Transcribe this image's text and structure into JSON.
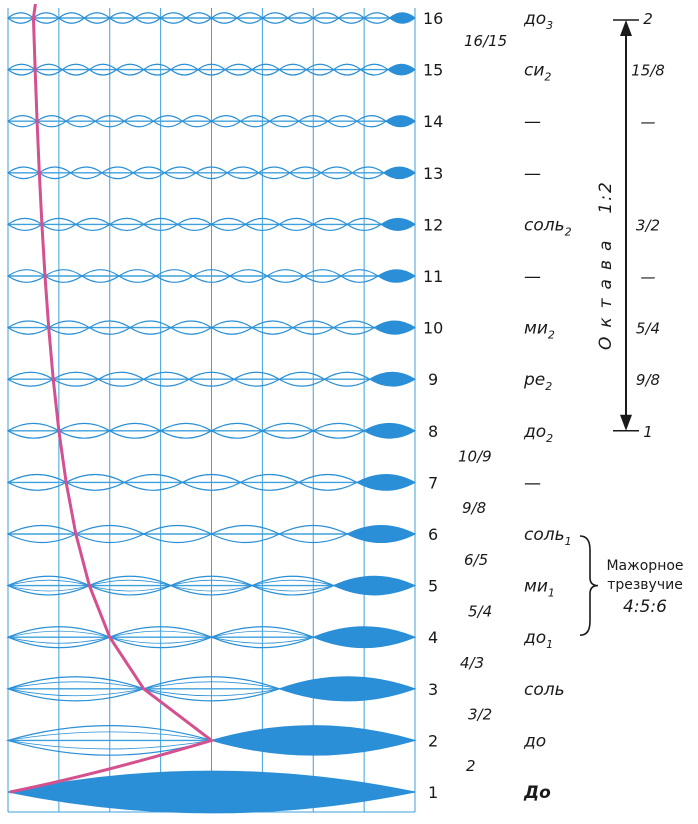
{
  "colors": {
    "wave": "#2a8fd6",
    "grid": "#3ea0dc",
    "curve": "#d4508f",
    "ink": "#1a1a1a"
  },
  "harmonics": [
    {
      "n": "1",
      "note": "До",
      "sub": "",
      "ratio": ""
    },
    {
      "n": "2",
      "note": "до",
      "sub": "",
      "ratio": ""
    },
    {
      "n": "3",
      "note": "соль",
      "sub": "",
      "ratio": ""
    },
    {
      "n": "4",
      "note": "до",
      "sub": "1",
      "ratio": ""
    },
    {
      "n": "5",
      "note": "ми",
      "sub": "1",
      "ratio": ""
    },
    {
      "n": "6",
      "note": "соль",
      "sub": "1",
      "ratio": ""
    },
    {
      "n": "7",
      "note": "—",
      "sub": "",
      "ratio": ""
    },
    {
      "n": "8",
      "note": "до",
      "sub": "2",
      "ratio": "1"
    },
    {
      "n": "9",
      "note": "ре",
      "sub": "2",
      "ratio": "9/8"
    },
    {
      "n": "10",
      "note": "ми",
      "sub": "2",
      "ratio": "5/4"
    },
    {
      "n": "11",
      "note": "—",
      "sub": "",
      "ratio": "—"
    },
    {
      "n": "12",
      "note": "соль",
      "sub": "2",
      "ratio": "3/2"
    },
    {
      "n": "13",
      "note": "—",
      "sub": "",
      "ratio": ""
    },
    {
      "n": "14",
      "note": "—",
      "sub": "",
      "ratio": "—"
    },
    {
      "n": "15",
      "note": "си",
      "sub": "2",
      "ratio": "15/8"
    },
    {
      "n": "16",
      "note": "до",
      "sub": "3",
      "ratio": "2"
    }
  ],
  "intervals": [
    "2",
    "3/2",
    "4/3",
    "5/4",
    "6/5",
    "9/8",
    "10/9",
    "16/15"
  ],
  "octave": {
    "title": "Октава",
    "ratio": "1:2"
  },
  "triad": {
    "line1": "Мажорное",
    "line2": "трезвучие",
    "line3": "4:5:6"
  }
}
